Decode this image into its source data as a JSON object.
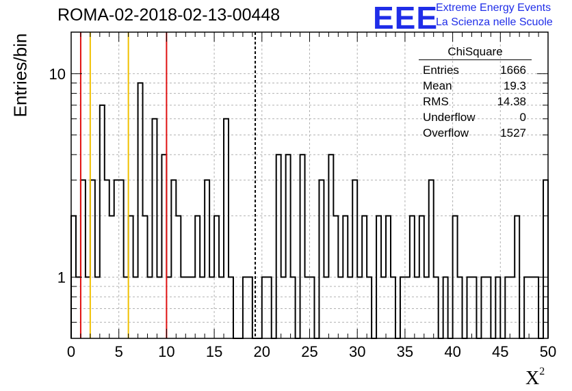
{
  "header": {
    "title": "ROMA-02-2018-02-13-00448",
    "logo_text": "EEE",
    "logo_line1": "Extreme Energy Events",
    "logo_line2": "La Scienza nelle Scuole"
  },
  "colors": {
    "histogram": "#000000",
    "red_lines": "#e01010",
    "yellow_lines": "#f0c000",
    "grid": "#b0b0b0",
    "logo": "#1f2de8"
  },
  "stats": {
    "title": "ChiSquare",
    "rows": [
      {
        "label": "Entries",
        "value": "1666"
      },
      {
        "label": "Mean",
        "value": "19.3"
      },
      {
        "label": "RMS",
        "value": "14.38"
      },
      {
        "label": "Underflow",
        "value": "0"
      },
      {
        "label": "Overflow",
        "value": "1527"
      }
    ]
  },
  "chart_data": {
    "type": "bar",
    "title": "ROMA-02-2018-02-13-00448",
    "xlabel": "X",
    "xlabel_superscript": "2",
    "ylabel": "Entries/bin",
    "xlim": [
      0,
      50
    ],
    "ylim": [
      0.5,
      16
    ],
    "y_scale": "log",
    "grid": true,
    "bin_width": 0.5,
    "x_ticks": [
      "0",
      "5",
      "10",
      "15",
      "20",
      "25",
      "30",
      "35",
      "40",
      "45",
      "50"
    ],
    "y_ticks": [
      "1",
      "10"
    ],
    "values": [
      2,
      1,
      3,
      1,
      3,
      1,
      7,
      3,
      2,
      3,
      3,
      1,
      2,
      1,
      9,
      2,
      1,
      6,
      1,
      4,
      1,
      3,
      2,
      1,
      1,
      1,
      2,
      1,
      3,
      1,
      2,
      1,
      6,
      1,
      0,
      0,
      1,
      1,
      0,
      0,
      1,
      1,
      0,
      4,
      1,
      4,
      1,
      0,
      4,
      1,
      1,
      0,
      3,
      1,
      4,
      2,
      1,
      2,
      1,
      3,
      1,
      2,
      1,
      0,
      2,
      1,
      2,
      1,
      0,
      1,
      1,
      2,
      1,
      2,
      1,
      3,
      1,
      0,
      1,
      0,
      2,
      1,
      0,
      1,
      1,
      0,
      1,
      1,
      0,
      1,
      0,
      1,
      1,
      2,
      0,
      1,
      1,
      1,
      0,
      3
    ],
    "vertical_lines": [
      {
        "x": 1,
        "color": "red"
      },
      {
        "x": 2,
        "color": "yellow"
      },
      {
        "x": 6,
        "color": "yellow"
      },
      {
        "x": 10,
        "color": "red"
      },
      {
        "x": 19.3,
        "color": "black",
        "style": "dashed"
      }
    ]
  }
}
